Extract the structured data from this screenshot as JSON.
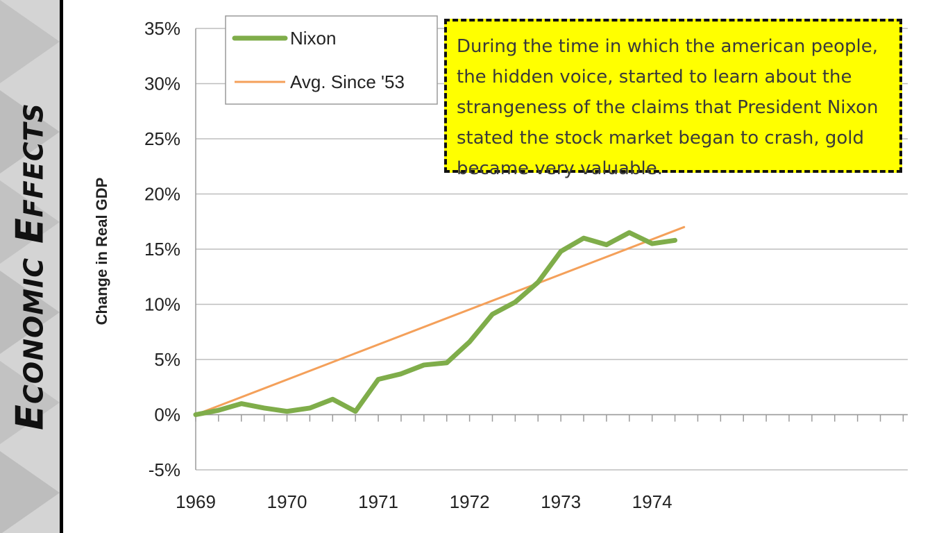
{
  "sidebar": {
    "title": "Economic   Effects",
    "background": "#d4d4d4"
  },
  "callout": {
    "text": "During the time in which the american people, the hidden voice, started to learn about the strangeness of the claims that President Nixon stated the stock market began to crash, gold became very valuable.",
    "background": "#ffff00"
  },
  "chart_data": {
    "type": "line",
    "title": "",
    "xlabel": "",
    "ylabel": "Change in Real GDP",
    "x_ticks": [
      "1969",
      "1970",
      "1971",
      "1972",
      "1973",
      "1974"
    ],
    "y_ticks": [
      "35%",
      "30%",
      "25%",
      "20%",
      "15%",
      "10%",
      "5%",
      "0%",
      "-5%"
    ],
    "ylim": [
      -5,
      35
    ],
    "xlim": [
      1969,
      1976.8
    ],
    "grid": "horizontal",
    "legend_position": "top-left",
    "series": [
      {
        "name": "Nixon",
        "color": "#7fad4a",
        "x": [
          1969.0,
          1969.25,
          1969.5,
          1969.75,
          1970.0,
          1970.25,
          1970.5,
          1970.75,
          1971.0,
          1971.25,
          1971.5,
          1971.75,
          1972.0,
          1972.25,
          1972.5,
          1972.75,
          1973.0,
          1973.25,
          1973.5,
          1973.75,
          1974.0,
          1974.25
        ],
        "values": [
          0.0,
          0.4,
          1.0,
          0.6,
          0.3,
          0.6,
          1.4,
          0.3,
          3.2,
          3.7,
          4.5,
          4.7,
          6.6,
          9.1,
          10.2,
          12.0,
          14.8,
          16.0,
          15.4,
          16.5,
          15.5,
          15.8
        ]
      },
      {
        "name": "Avg. Since '53",
        "color": "#f4a05a",
        "x": [
          1969.0,
          1974.35
        ],
        "values": [
          0.0,
          17.0
        ]
      }
    ]
  }
}
